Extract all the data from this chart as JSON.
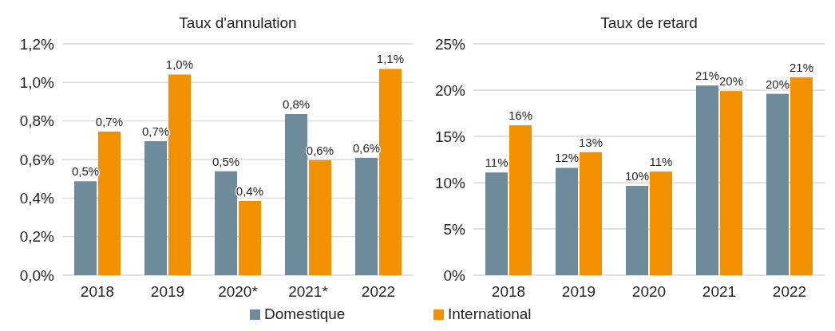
{
  "chart_data": [
    {
      "type": "bar",
      "title": "Taux d'annulation",
      "categories": [
        "2018",
        "2019",
        "2020*",
        "2021*",
        "2022"
      ],
      "series": [
        {
          "name": "Domestique",
          "color": "#6e8b9b",
          "values": [
            0.487,
            0.695,
            0.539,
            0.836,
            0.609
          ],
          "value_labels": [
            "0,5%",
            "0,7%",
            "0,5%",
            "0,8%",
            "0,6%"
          ]
        },
        {
          "name": "International",
          "color": "#f29100",
          "values": [
            0.745,
            1.041,
            0.385,
            0.597,
            1.07
          ],
          "value_labels": [
            "0,7%",
            "1,0%",
            "0,4%",
            "0,6%",
            "1,1%"
          ]
        }
      ],
      "ylim": [
        0,
        1.2
      ],
      "yticks": [
        {
          "value": 0,
          "label": "0,0%"
        },
        {
          "value": 0.2,
          "label": "0,2%"
        },
        {
          "value": 0.4,
          "label": "0,4%"
        },
        {
          "value": 0.6,
          "label": "0,6%"
        },
        {
          "value": 0.8,
          "label": "0,8%"
        },
        {
          "value": 1,
          "label": "1,0%"
        },
        {
          "value": 1.2,
          "label": "1,2%"
        }
      ],
      "grid": "y",
      "legend": "bottom"
    },
    {
      "type": "bar",
      "title": "Taux de retard",
      "categories": [
        "2018",
        "2019",
        "2020",
        "2021",
        "2022"
      ],
      "series": [
        {
          "color": "#6e8b9b",
          "values": [
            11.1,
            11.6,
            9.65,
            20.5,
            19.6
          ],
          "value_labels": [
            "11%",
            "12%",
            "10%",
            "21%",
            "20%"
          ]
        },
        {
          "color": "#f29100",
          "values": [
            16.2,
            13.3,
            11.2,
            19.9,
            21.4
          ],
          "value_labels": [
            "16%",
            "13%",
            "11%",
            "20%",
            "21%"
          ]
        }
      ],
      "ylim": [
        0,
        25
      ],
      "yticks": [
        {
          "value": 0,
          "label": "0%"
        },
        {
          "value": 5,
          "label": "5%"
        },
        {
          "value": 10,
          "label": "10%"
        },
        {
          "value": 15,
          "label": "15%"
        },
        {
          "value": 20,
          "label": "20%"
        },
        {
          "value": 25,
          "label": "25%"
        }
      ],
      "grid": "y"
    }
  ]
}
